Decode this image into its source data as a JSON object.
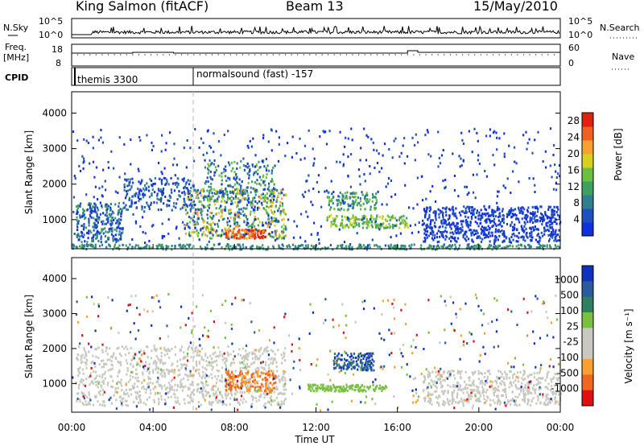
{
  "header": {
    "station": "King Salmon (fitACF)",
    "beam": "Beam 13",
    "date": "15/May/2010"
  },
  "top_panels": {
    "left_labels": {
      "nsky": "N.Sky",
      "freq_line1": "Freq.",
      "freq_line2": "[MHz]",
      "cpid": "CPID"
    },
    "right_labels": {
      "nsearch": "N.Search",
      "nave": "Nave"
    },
    "noise_ticks_left": [
      "10^5",
      "10^0"
    ],
    "noise_ticks_right": [
      "10^5",
      "10^0"
    ],
    "freq_ticks_left": [
      "18",
      "8"
    ],
    "freq_ticks_right": [
      "60",
      "0"
    ],
    "cpid_segments": [
      {
        "label": "themis 3300",
        "start_hour": 0.0
      },
      {
        "label": "normalsound (fast) -157",
        "start_hour": 6.0
      }
    ]
  },
  "chart_data": [
    {
      "type": "heatmap",
      "name": "power",
      "ylabel": "Slant Range [km]",
      "ylim": [
        180,
        4600
      ],
      "yticks": [
        1000,
        2000,
        3000,
        4000
      ],
      "xlim": [
        0,
        24
      ],
      "colorbar": {
        "label": "Power [dB]",
        "ticks": [
          4,
          8,
          12,
          16,
          20,
          24,
          28
        ],
        "range": [
          0,
          30
        ],
        "colors": [
          "#1030e0",
          "#1f4fbf",
          "#2f7f8f",
          "#3fa060",
          "#6cc040",
          "#d8d020",
          "#f8a030",
          "#f06020",
          "#e02010"
        ]
      }
    },
    {
      "type": "heatmap",
      "name": "velocity",
      "xlabel": "Time UT",
      "ylabel": "Slant Range [km]",
      "ylim": [
        180,
        4600
      ],
      "yticks": [
        1000,
        2000,
        3000,
        4000
      ],
      "xlim": [
        0,
        24
      ],
      "xticks": [
        "00:00",
        "04:00",
        "08:00",
        "12:00",
        "16:00",
        "20:00",
        "00:00"
      ],
      "colorbar": {
        "label": "Velocity [m s⁻¹]",
        "ticks": [
          "1000",
          "500",
          "100",
          "25",
          "-25",
          "-100",
          "-500",
          "-1000"
        ],
        "colors": [
          "#1030c0",
          "#2a5aa0",
          "#2f8060",
          "#7ac040",
          "#c8c8c0",
          "#c8c8c0",
          "#f8a030",
          "#f06820",
          "#e01010"
        ]
      }
    }
  ]
}
